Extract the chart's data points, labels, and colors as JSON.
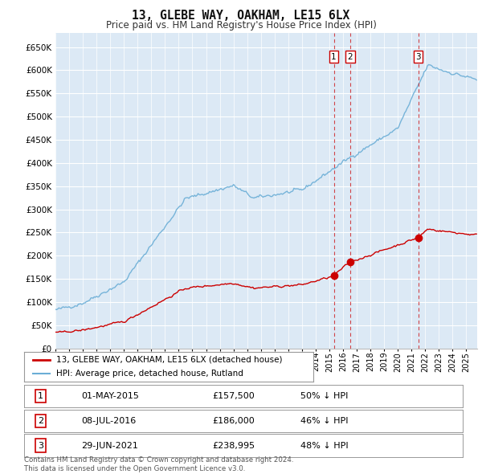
{
  "title": "13, GLEBE WAY, OAKHAM, LE15 6LX",
  "subtitle": "Price paid vs. HM Land Registry's House Price Index (HPI)",
  "ylim": [
    0,
    680000
  ],
  "yticks": [
    0,
    50000,
    100000,
    150000,
    200000,
    250000,
    300000,
    350000,
    400000,
    450000,
    500000,
    550000,
    600000,
    650000
  ],
  "background_color": "#ffffff",
  "plot_bg_color": "#dce9f5",
  "grid_color": "#ffffff",
  "hpi_color": "#6baed6",
  "price_color": "#cc0000",
  "vline_color": "#cc0000",
  "transactions": [
    {
      "date": 2015.33,
      "price": 157500,
      "label": "1"
    },
    {
      "date": 2016.52,
      "price": 186000,
      "label": "2"
    },
    {
      "date": 2021.49,
      "price": 238995,
      "label": "3"
    }
  ],
  "legend_entries": [
    {
      "label": "13, GLEBE WAY, OAKHAM, LE15 6LX (detached house)",
      "color": "#cc0000"
    },
    {
      "label": "HPI: Average price, detached house, Rutland",
      "color": "#6baed6"
    }
  ],
  "table_rows": [
    {
      "num": "1",
      "date": "01-MAY-2015",
      "price": "£157,500",
      "pct": "50% ↓ HPI"
    },
    {
      "num": "2",
      "date": "08-JUL-2016",
      "price": "£186,000",
      "pct": "46% ↓ HPI"
    },
    {
      "num": "3",
      "date": "29-JUN-2021",
      "price": "£238,995",
      "pct": "48% ↓ HPI"
    }
  ],
  "footer": "Contains HM Land Registry data © Crown copyright and database right 2024.\nThis data is licensed under the Open Government Licence v3.0.",
  "xmin": 1995.0,
  "xmax": 2025.8
}
